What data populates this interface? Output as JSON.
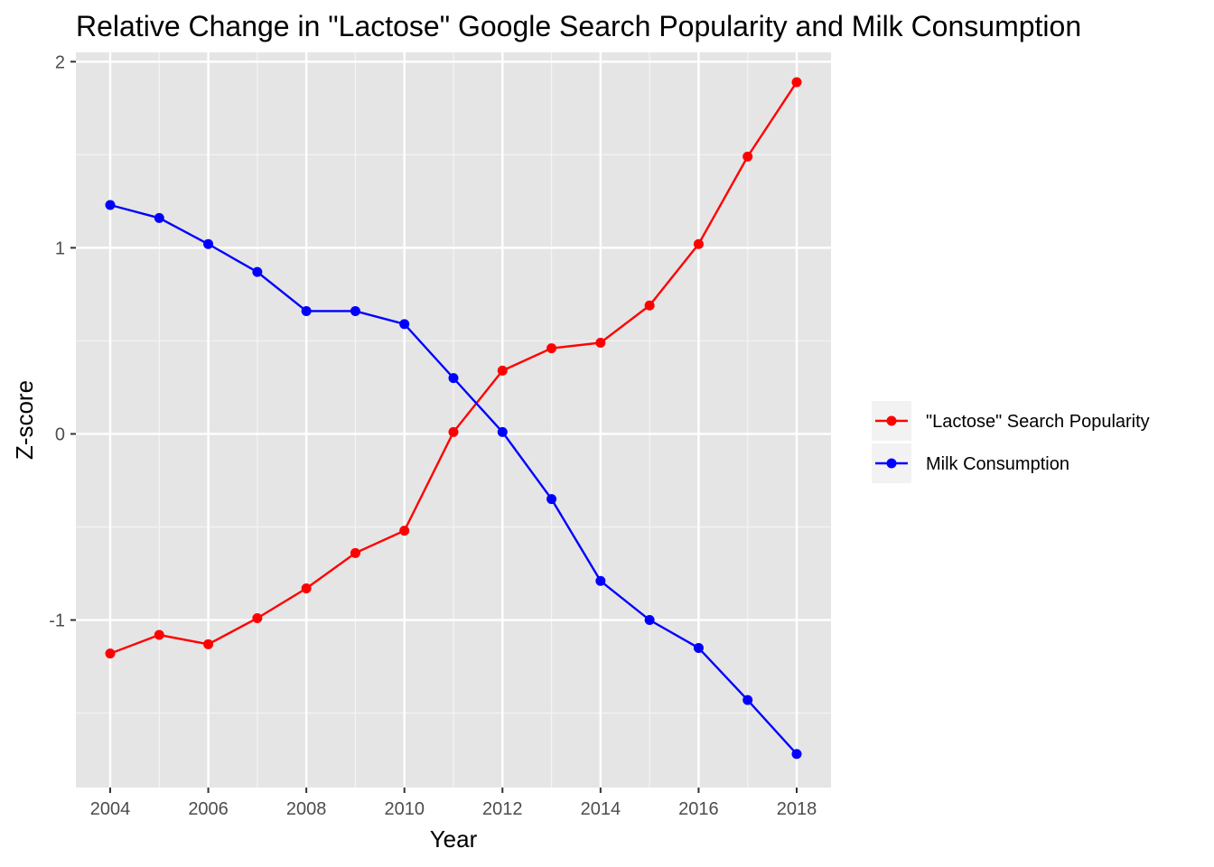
{
  "chart_data": {
    "type": "line",
    "title": "Relative Change in \"Lactose\" Google Search Popularity and Milk Consumption",
    "xlabel": "Year",
    "ylabel": "Z-score",
    "x": [
      2004,
      2005,
      2006,
      2007,
      2008,
      2009,
      2010,
      2011,
      2012,
      2013,
      2014,
      2015,
      2016,
      2017,
      2018
    ],
    "xlim": [
      2003.3,
      2018.7
    ],
    "ylim": [
      -1.9,
      2.05
    ],
    "x_ticks": [
      2004,
      2006,
      2008,
      2010,
      2012,
      2014,
      2016,
      2018
    ],
    "x_tick_labels": [
      "2004",
      "2006",
      "2008",
      "2010",
      "2012",
      "2014",
      "2016",
      "2018"
    ],
    "y_ticks": [
      -1,
      0,
      1,
      2
    ],
    "y_tick_labels": [
      "-1",
      "0",
      "1",
      "2"
    ],
    "grid": true,
    "legend_position": "right",
    "series": [
      {
        "name": "\"Lactose\" Search Popularity",
        "color": "#ff0000",
        "values": [
          -1.18,
          -1.08,
          -1.13,
          -0.99,
          -0.83,
          -0.64,
          -0.52,
          0.01,
          0.34,
          0.46,
          0.49,
          0.69,
          1.02,
          1.49,
          1.89
        ]
      },
      {
        "name": "Milk Consumption",
        "color": "#0000ff",
        "values": [
          1.23,
          1.16,
          1.02,
          0.87,
          0.66,
          0.66,
          0.59,
          0.3,
          0.01,
          -0.35,
          -0.79,
          -1.0,
          -1.15,
          -1.43,
          -1.72
        ]
      }
    ]
  }
}
